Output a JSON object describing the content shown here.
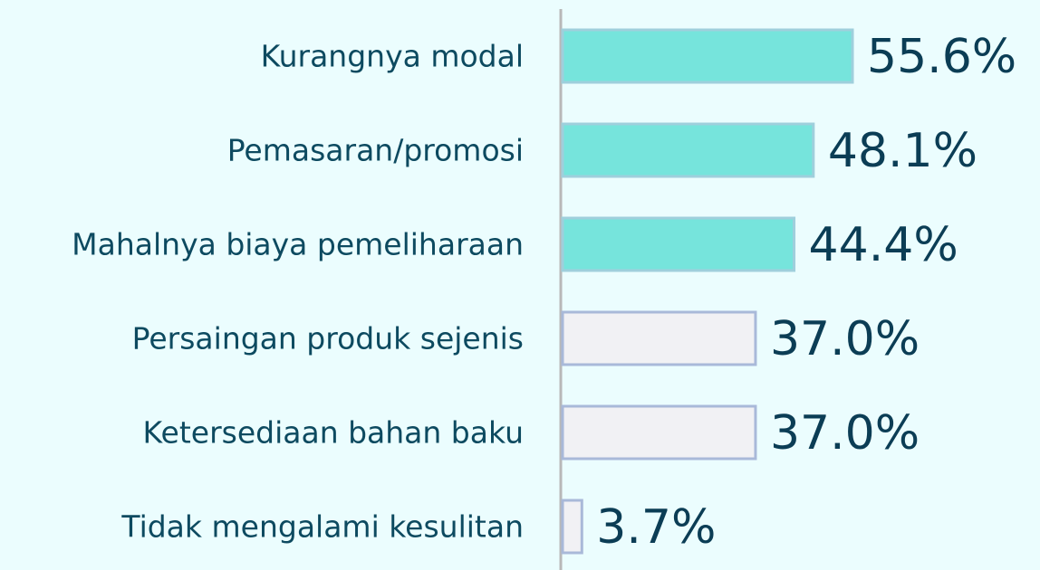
{
  "chart_data": {
    "type": "hbar",
    "categories": [
      "Kurangnya modal",
      "Pemasaran/promosi",
      "Mahalnya biaya pemeliharaan",
      "Persaingan produk sejenis",
      "Ketersediaan bahan baku",
      "Tidak mengalami kesulitan"
    ],
    "values": [
      55.6,
      48.1,
      44.4,
      37.0,
      37.0,
      3.7
    ],
    "value_labels": [
      "55.6%",
      "48.1%",
      "44.4%",
      "37.0%",
      "37.0%",
      "3.7%"
    ],
    "colors": [
      "#76e4dc",
      "#76e4dc",
      "#76e4dc",
      "#f1f1f4",
      "#f1f1f4",
      "#f1f1f4"
    ]
  }
}
